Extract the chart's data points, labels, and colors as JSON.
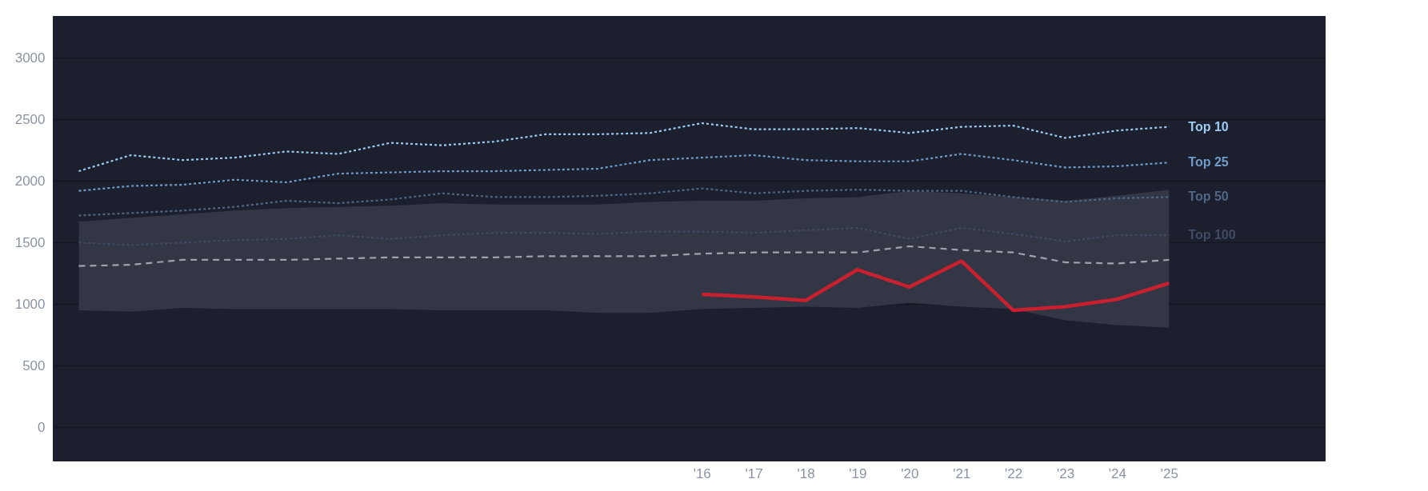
{
  "chart_data": {
    "type": "line",
    "x": [
      2004,
      2005,
      2006,
      2007,
      2008,
      2009,
      2010,
      2011,
      2012,
      2013,
      2014,
      2015,
      2016,
      2017,
      2018,
      2019,
      2020,
      2021,
      2022,
      2023,
      2024,
      2025
    ],
    "xlim": [
      2003.5,
      2028
    ],
    "ylim": [
      -270,
      3340
    ],
    "xticks": [
      {
        "value": 2016,
        "label": "'16"
      },
      {
        "value": 2017,
        "label": "'17"
      },
      {
        "value": 2018,
        "label": "'18"
      },
      {
        "value": 2019,
        "label": "'19"
      },
      {
        "value": 2020,
        "label": "'20"
      },
      {
        "value": 2021,
        "label": "'21"
      },
      {
        "value": 2022,
        "label": "'22"
      },
      {
        "value": 2023,
        "label": "'23"
      },
      {
        "value": 2024,
        "label": "'24"
      },
      {
        "value": 2025,
        "label": "'25"
      }
    ],
    "yticks": [
      0,
      500,
      1000,
      1500,
      2000,
      2500,
      3000
    ],
    "grid": "y",
    "series": [
      {
        "name": "Top 10",
        "color": "#9ccbf0",
        "line_style": "dotted",
        "values": [
          2080,
          2210,
          2170,
          2190,
          2240,
          2220,
          2310,
          2290,
          2320,
          2380,
          2380,
          2390,
          2470,
          2420,
          2420,
          2430,
          2390,
          2440,
          2450,
          2350,
          2410,
          2440
        ]
      },
      {
        "name": "Top 25",
        "color": "#6f9cc8",
        "line_style": "dotted",
        "values": [
          1920,
          1960,
          1970,
          2010,
          1990,
          2060,
          2070,
          2080,
          2080,
          2090,
          2100,
          2170,
          2190,
          2210,
          2170,
          2160,
          2160,
          2220,
          2170,
          2110,
          2120,
          2150
        ]
      },
      {
        "name": "Top 50",
        "color": "#4f6684",
        "line_style": "dotted",
        "values": [
          1720,
          1740,
          1760,
          1790,
          1840,
          1820,
          1850,
          1900,
          1870,
          1870,
          1880,
          1900,
          1940,
          1900,
          1920,
          1930,
          1920,
          1920,
          1870,
          1830,
          1860,
          1870
        ]
      },
      {
        "name": "Top 100",
        "color": "#3e4b62",
        "line_style": "dotted",
        "values": [
          1500,
          1480,
          1500,
          1520,
          1530,
          1560,
          1530,
          1560,
          1580,
          1580,
          1570,
          1590,
          1590,
          1580,
          1600,
          1620,
          1530,
          1620,
          1570,
          1510,
          1560,
          1560
        ]
      },
      {
        "color": "#9ea3ab",
        "line_style": "dashed",
        "values": [
          1310,
          1320,
          1360,
          1360,
          1360,
          1370,
          1380,
          1380,
          1380,
          1390,
          1390,
          1390,
          1410,
          1420,
          1420,
          1420,
          1470,
          1440,
          1420,
          1340,
          1330,
          1360
        ],
        "lower": [
          950,
          940,
          970,
          960,
          960,
          960,
          960,
          950,
          950,
          950,
          930,
          930,
          960,
          970,
          980,
          970,
          1010,
          980,
          960,
          870,
          830,
          810
        ],
        "upper": [
          1670,
          1700,
          1730,
          1760,
          1780,
          1790,
          1800,
          1820,
          1810,
          1810,
          1810,
          1830,
          1840,
          1840,
          1860,
          1870,
          1920,
          1900,
          1870,
          1840,
          1880,
          1930
        ]
      },
      {
        "color": "#c8202f",
        "line_style": "solid",
        "x": [
          2016,
          2017,
          2018,
          2019,
          2020,
          2021,
          2022,
          2023,
          2024,
          2025
        ],
        "values": [
          1080,
          1060,
          1030,
          1280,
          1140,
          1350,
          950,
          980,
          1040,
          1170
        ]
      }
    ]
  }
}
